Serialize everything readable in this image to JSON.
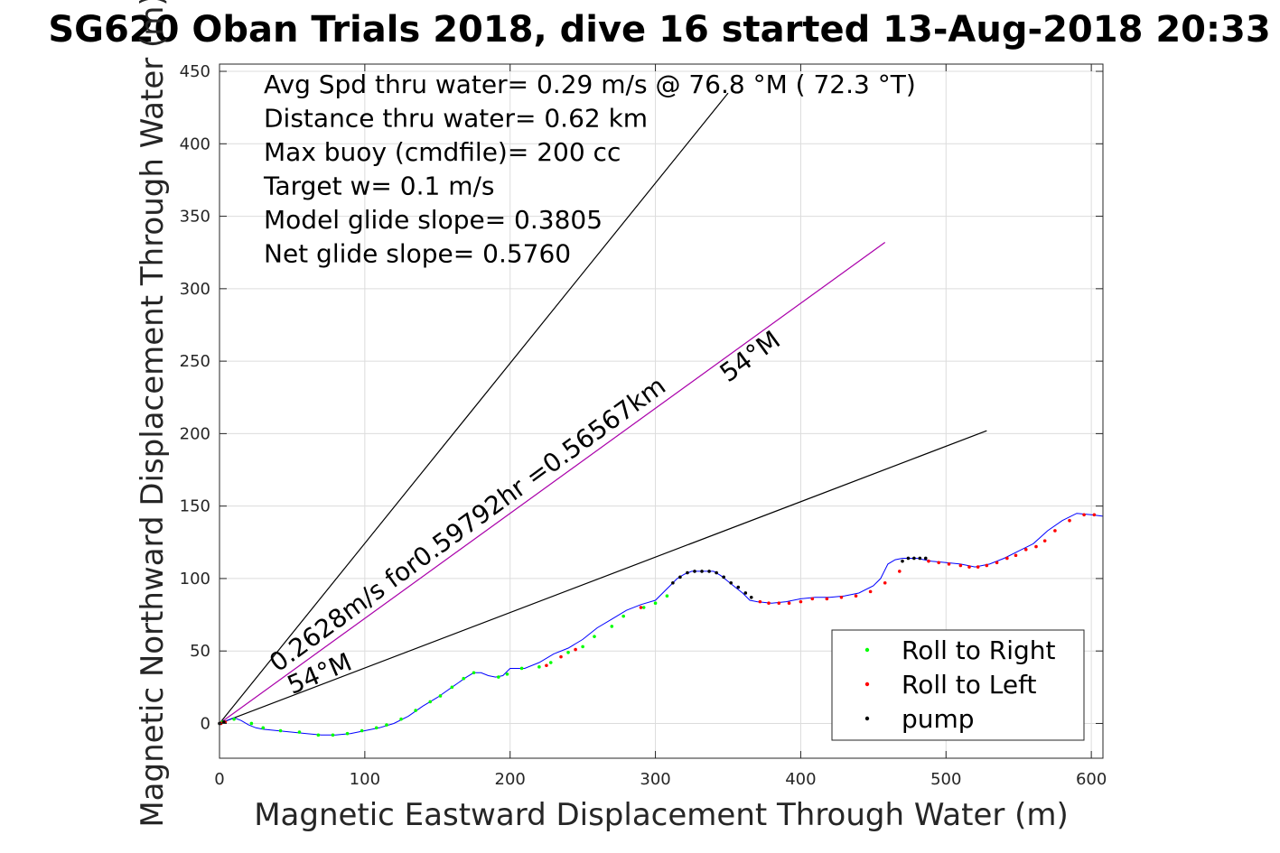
{
  "chart_data": {
    "type": "scatter",
    "title": "SG620 Oban Trials 2018, dive 16 started 13-Aug-2018 20:33",
    "xlabel": "Magnetic Eastward Displacement Through Water (m)",
    "ylabel": "Magnetic Northward Displacement Through Water (m)",
    "xlim": [
      0,
      608
    ],
    "ylim": [
      -24,
      455
    ],
    "xticks": [
      0,
      100,
      200,
      300,
      400,
      500,
      600
    ],
    "yticks": [
      0,
      50,
      100,
      150,
      200,
      250,
      300,
      350,
      400,
      450
    ],
    "grid": true,
    "legend_position": "bottom-right",
    "info_lines": [
      "Avg Spd thru water=  0.29 m/s @  76.8 °M ( 72.3 °T)",
      "Distance thru water=  0.62 km",
      "Max buoy (cmdfile)= 200 cc",
      "Target w= 0.1 m/s",
      "Model glide slope= 0.3805",
      "Net glide slope= 0.5760"
    ],
    "annotations": [
      {
        "text": "0.2628m/s for0.59792hr =0.56567km",
        "x": 40,
        "y": 35,
        "angle_deg": 36
      },
      {
        "text": "54°M",
        "x": 350,
        "y": 235,
        "angle_deg": 36
      },
      {
        "text": "54°M",
        "x": 50,
        "y": 20,
        "angle_deg": 23
      }
    ],
    "reference_lines": [
      {
        "name": "upper-bound",
        "color": "#000000",
        "x": [
          0,
          350
        ],
        "y": [
          0,
          435
        ]
      },
      {
        "name": "mean-heading",
        "color": "#aa00aa",
        "x": [
          0,
          458
        ],
        "y": [
          0,
          332
        ]
      },
      {
        "name": "lower-bound",
        "color": "#000000",
        "x": [
          0,
          528
        ],
        "y": [
          0,
          202
        ]
      }
    ],
    "track": {
      "color": "#0000ff",
      "x": [
        0,
        5,
        10,
        15,
        20,
        25,
        30,
        40,
        50,
        60,
        70,
        80,
        90,
        100,
        110,
        120,
        130,
        140,
        150,
        160,
        170,
        175,
        180,
        185,
        190,
        195,
        200,
        205,
        210,
        220,
        230,
        240,
        250,
        255,
        260,
        270,
        280,
        290,
        300,
        310,
        315,
        320,
        325,
        330,
        335,
        340,
        345,
        350,
        355,
        360,
        365,
        370,
        380,
        390,
        400,
        410,
        420,
        430,
        440,
        450,
        455,
        460,
        465,
        470,
        475,
        480,
        485,
        490,
        500,
        510,
        520,
        530,
        540,
        550,
        560,
        570,
        580,
        590,
        600,
        608
      ],
      "y": [
        0,
        2,
        4,
        2,
        -1,
        -3,
        -4,
        -5,
        -6,
        -7,
        -8,
        -8,
        -7,
        -5,
        -3,
        0,
        5,
        12,
        18,
        25,
        32,
        35,
        35,
        33,
        32,
        33,
        38,
        38,
        38,
        42,
        48,
        52,
        58,
        62,
        66,
        72,
        78,
        82,
        85,
        95,
        100,
        103,
        105,
        105,
        105,
        105,
        102,
        98,
        94,
        90,
        85,
        84,
        83,
        84,
        86,
        87,
        87,
        88,
        90,
        95,
        100,
        110,
        113,
        114,
        114,
        114,
        113,
        112,
        111,
        110,
        108,
        110,
        114,
        119,
        124,
        133,
        140,
        145,
        144,
        143
      ]
    },
    "series": [
      {
        "name": "Roll to Right",
        "color": "#00ff00",
        "x": [
          2,
          10,
          22,
          30,
          42,
          55,
          68,
          78,
          88,
          98,
          108,
          115,
          125,
          135,
          145,
          152,
          160,
          168,
          175,
          192,
          198,
          208,
          220,
          228,
          240,
          250,
          258,
          270,
          278,
          292,
          300,
          308
        ],
        "y": [
          1,
          3,
          0,
          -3,
          -5,
          -6,
          -8,
          -8,
          -7,
          -5,
          -3,
          -1,
          3,
          9,
          15,
          19,
          25,
          31,
          35,
          32,
          34,
          38,
          39,
          42,
          49,
          53,
          60,
          67,
          74,
          80,
          83,
          88
        ]
      },
      {
        "name": "Roll to Left",
        "color": "#ff0000",
        "x": [
          1,
          4,
          225,
          235,
          245,
          290,
          372,
          378,
          385,
          392,
          400,
          408,
          418,
          428,
          438,
          448,
          458,
          468,
          488,
          495,
          502,
          510,
          516,
          522,
          528,
          535,
          542,
          548,
          555,
          562,
          568,
          575,
          585,
          595,
          602
        ],
        "y": [
          0,
          1,
          40,
          46,
          51,
          80,
          84,
          83,
          83,
          83,
          84,
          86,
          86,
          87,
          88,
          91,
          97,
          105,
          112,
          111,
          110,
          109,
          108,
          108,
          109,
          111,
          114,
          116,
          120,
          122,
          126,
          133,
          140,
          144,
          144
        ]
      },
      {
        "name": "pump",
        "color": "#000000",
        "x": [
          0,
          3,
          312,
          317,
          322,
          327,
          332,
          337,
          342,
          347,
          352,
          357,
          362,
          366,
          470,
          474,
          478,
          482,
          486
        ],
        "y": [
          0,
          1,
          97,
          101,
          104,
          105,
          105,
          105,
          104,
          101,
          97,
          94,
          90,
          87,
          112,
          114,
          114,
          114,
          114
        ]
      }
    ]
  }
}
